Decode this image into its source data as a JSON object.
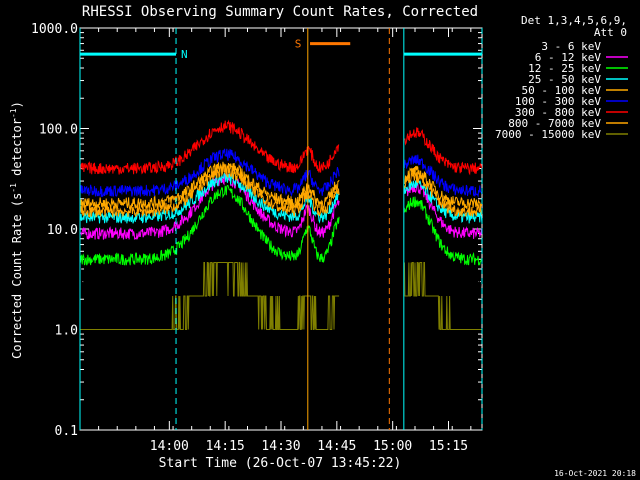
{
  "chart_data": {
    "type": "line",
    "title": "RHESSI Observing Summary Count Rates, Corrected",
    "xlabel": "Start Time (26-Oct-07 13:45:22)",
    "ylabel_main": "Corrected Count Rate (s",
    "ylabel_sup1": "-1",
    "ylabel_mid": " detector",
    "ylabel_sup2": "-1",
    "ylabel_end": ")",
    "yscale": "log",
    "ylim": [
      0.1,
      1000.0
    ],
    "xlim_minutes": [
      13.6,
      15.4
    ],
    "y_ticks": [
      {
        "value": 0.1,
        "label": "0.1"
      },
      {
        "value": 1,
        "label": "1.0"
      },
      {
        "value": 10,
        "label": "10.0"
      },
      {
        "value": 100,
        "label": "100.0"
      },
      {
        "value": 1000,
        "label": "1000.0"
      }
    ],
    "x_ticks": [
      {
        "value": 14.0,
        "label": "14:00"
      },
      {
        "value": 14.25,
        "label": "14:15"
      },
      {
        "value": 14.5,
        "label": "14:30"
      },
      {
        "value": 14.75,
        "label": "14:45"
      },
      {
        "value": 15.0,
        "label": "15:00"
      },
      {
        "value": 15.25,
        "label": "15:15"
      }
    ],
    "legend": {
      "header1": "Det 1,3,4,5,6,9,",
      "header2": "Att 0",
      "placement": "right"
    },
    "series": [
      {
        "name": "3 - 6 keV",
        "color": "#000000",
        "peak": 15,
        "base": 3.3
      },
      {
        "name": "6 - 12 keV",
        "color": "#ff00ff",
        "peak": 32,
        "base": 9
      },
      {
        "name": "12 - 25 keV",
        "color": "#00ff00",
        "peak": 24,
        "base": 5
      },
      {
        "name": "25 - 50 keV",
        "color": "#00ffff",
        "peak": 32,
        "base": 13
      },
      {
        "name": "50 - 100 keV",
        "color": "#ffaa00",
        "peak": 42,
        "base": 18
      },
      {
        "name": "100 - 300 keV",
        "color": "#0000ff",
        "peak": 55,
        "base": 24
      },
      {
        "name": "300 - 800 keV",
        "color": "#ff0000",
        "peak": 105,
        "base": 40
      },
      {
        "name": "800 - 7000 keV",
        "color": "#ffa500",
        "peak": 38,
        "base": 15
      },
      {
        "name": "7000 - 15000 keV",
        "color": "#808000",
        "peak": 4,
        "base": 1
      }
    ],
    "annotations": {
      "n_label": "N",
      "s_label": "S",
      "night_bars": [
        {
          "start": 13.6,
          "end": 14.03,
          "y": 550
        },
        {
          "start": 15.05,
          "end": 15.4,
          "y": 550
        }
      ],
      "saa_bar": {
        "start": 14.81,
        "end": 15.0,
        "y": 700
      },
      "vlines": [
        {
          "x": 13.6,
          "color": "#00ffff",
          "dash": false
        },
        {
          "x": 14.03,
          "color": "#00ffff",
          "dash": true
        },
        {
          "x": 14.62,
          "color": "#ffa500",
          "dash": false
        },
        {
          "x": 14.985,
          "color": "#ff7700",
          "dash": true
        },
        {
          "x": 15.05,
          "color": "#00ffff",
          "dash": false
        },
        {
          "x": 15.4,
          "color": "#00ffff",
          "dash": true
        }
      ],
      "gap": {
        "start": 14.76,
        "end": 15.05
      }
    },
    "footer_date": "16-Oct-2021 20:18"
  }
}
